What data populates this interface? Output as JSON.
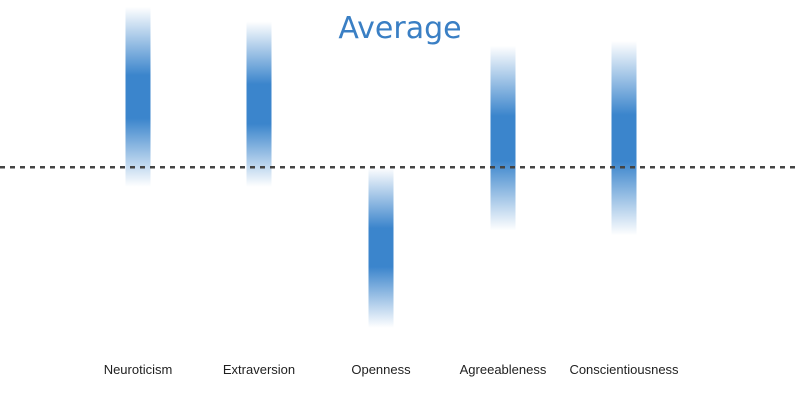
{
  "chart_data": {
    "type": "bar",
    "title": "Average",
    "categories": [
      "Neuroticism",
      "Extraversion",
      "Openness",
      "Agreeableness",
      "Conscientiousness"
    ],
    "ranges": [
      {
        "low": -0.2,
        "high": 1.65
      },
      {
        "low": -0.2,
        "high": 1.5
      },
      {
        "low": -1.65,
        "high": 0.0
      },
      {
        "low": -0.65,
        "high": 1.25
      },
      {
        "low": -0.7,
        "high": 1.3
      }
    ],
    "reference_line": 0,
    "ylim": [
      -1.9,
      1.7
    ],
    "bar_color": "#3b85cc",
    "reference_line_color": "#444444",
    "grid": false,
    "legend": "none"
  }
}
